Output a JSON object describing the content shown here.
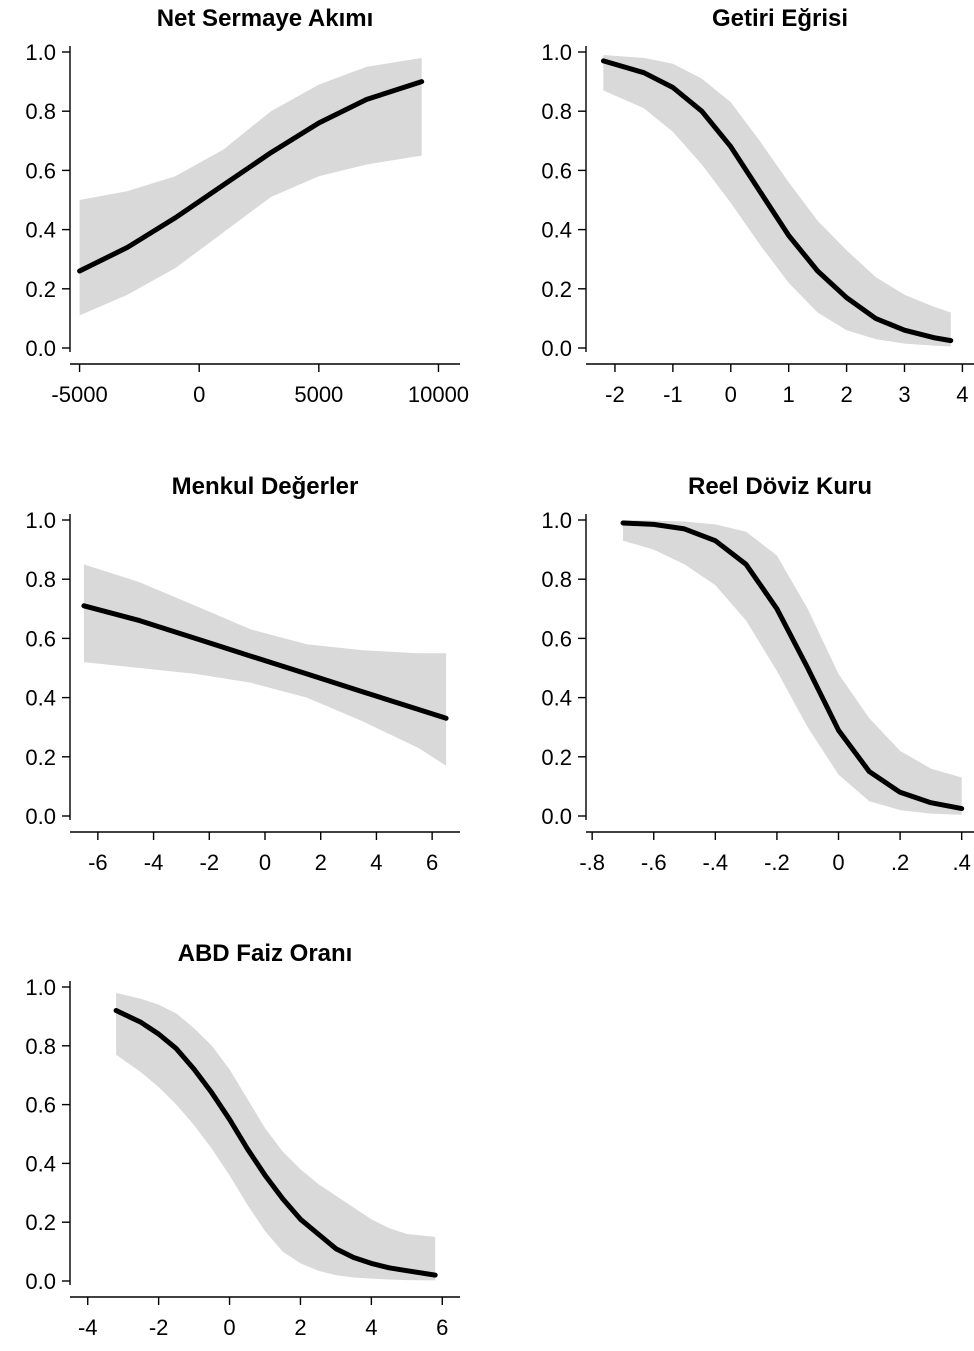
{
  "chart_data": [
    {
      "type": "line",
      "title": "Net Sermaye Akımı",
      "xlabel": "",
      "ylabel": "",
      "xlim": [
        -5400,
        10900
      ],
      "ylim": [
        0,
        1
      ],
      "xticks": [
        -5000,
        0,
        5000,
        10000
      ],
      "xtick_labels": [
        "-5000",
        "0",
        "5000",
        "10000"
      ],
      "yticks": [
        0,
        0.2,
        0.4,
        0.6,
        0.8,
        1
      ],
      "ytick_labels": [
        "0.0",
        "0.2",
        "0.4",
        "0.6",
        "0.8",
        "1.0"
      ],
      "series": [
        {
          "x": [
            -5000,
            -3000,
            -1000,
            1000,
            3000,
            5000,
            7000,
            9300
          ],
          "y": [
            0.26,
            0.34,
            0.44,
            0.55,
            0.66,
            0.76,
            0.84,
            0.9
          ],
          "lower": [
            0.11,
            0.18,
            0.27,
            0.39,
            0.51,
            0.58,
            0.62,
            0.65
          ],
          "upper": [
            0.5,
            0.53,
            0.58,
            0.67,
            0.8,
            0.89,
            0.95,
            0.98
          ]
        }
      ],
      "grid": false,
      "legend": "none"
    },
    {
      "type": "line",
      "title": "Getiri Eğrisi",
      "xlabel": "",
      "ylabel": "",
      "xlim": [
        -2.5,
        4.2
      ],
      "ylim": [
        0,
        1
      ],
      "xticks": [
        -2,
        -1,
        0,
        1,
        2,
        3,
        4
      ],
      "xtick_labels": [
        "-2",
        "-1",
        "0",
        "1",
        "2",
        "3",
        "4"
      ],
      "yticks": [
        0,
        0.2,
        0.4,
        0.6,
        0.8,
        1
      ],
      "ytick_labels": [
        "0.0",
        "0.2",
        "0.4",
        "0.6",
        "0.8",
        "1.0"
      ],
      "series": [
        {
          "x": [
            -2.2,
            -1.5,
            -1,
            -0.5,
            0,
            0.5,
            1,
            1.5,
            2,
            2.5,
            3,
            3.5,
            3.8
          ],
          "y": [
            0.97,
            0.93,
            0.88,
            0.8,
            0.68,
            0.53,
            0.38,
            0.26,
            0.17,
            0.1,
            0.06,
            0.035,
            0.025
          ],
          "lower": [
            0.87,
            0.81,
            0.73,
            0.62,
            0.49,
            0.35,
            0.22,
            0.12,
            0.06,
            0.03,
            0.015,
            0.008,
            0.005
          ],
          "upper": [
            0.99,
            0.98,
            0.96,
            0.91,
            0.83,
            0.7,
            0.56,
            0.43,
            0.33,
            0.24,
            0.18,
            0.14,
            0.12
          ]
        }
      ],
      "grid": false,
      "legend": "none"
    },
    {
      "type": "line",
      "title": "Menkul Değerler",
      "xlabel": "",
      "ylabel": "",
      "xlim": [
        -7,
        7
      ],
      "ylim": [
        0,
        1
      ],
      "xticks": [
        -6,
        -4,
        -2,
        0,
        2,
        4,
        6
      ],
      "xtick_labels": [
        "-6",
        "-4",
        "-2",
        "0",
        "2",
        "4",
        "6"
      ],
      "yticks": [
        0,
        0.2,
        0.4,
        0.6,
        0.8,
        1
      ],
      "ytick_labels": [
        "0.0",
        "0.2",
        "0.4",
        "0.6",
        "0.8",
        "1.0"
      ],
      "series": [
        {
          "x": [
            -6.5,
            -4.5,
            -2.5,
            -0.5,
            1.5,
            3.5,
            5.5,
            6.5
          ],
          "y": [
            0.71,
            0.66,
            0.6,
            0.54,
            0.48,
            0.42,
            0.36,
            0.33
          ],
          "lower": [
            0.52,
            0.5,
            0.48,
            0.45,
            0.4,
            0.32,
            0.23,
            0.17
          ],
          "upper": [
            0.85,
            0.79,
            0.71,
            0.63,
            0.58,
            0.56,
            0.55,
            0.55
          ]
        }
      ],
      "grid": false,
      "legend": "none"
    },
    {
      "type": "line",
      "title": "Reel Döviz Kuru",
      "xlabel": "",
      "ylabel": "",
      "xlim": [
        -0.82,
        0.44
      ],
      "ylim": [
        0,
        1
      ],
      "xticks": [
        -0.8,
        -0.6,
        -0.4,
        -0.2,
        0,
        0.2,
        0.4
      ],
      "xtick_labels": [
        "-.8",
        "-.6",
        "-.4",
        "-.2",
        "0",
        ".2",
        ".4"
      ],
      "yticks": [
        0,
        0.2,
        0.4,
        0.6,
        0.8,
        1
      ],
      "ytick_labels": [
        "0.0",
        "0.2",
        "0.4",
        "0.6",
        "0.8",
        "1.0"
      ],
      "series": [
        {
          "x": [
            -0.7,
            -0.6,
            -0.5,
            -0.4,
            -0.3,
            -0.2,
            -0.1,
            0,
            0.1,
            0.2,
            0.3,
            0.4
          ],
          "y": [
            0.99,
            0.985,
            0.97,
            0.93,
            0.85,
            0.7,
            0.5,
            0.29,
            0.15,
            0.08,
            0.045,
            0.025
          ],
          "lower": [
            0.93,
            0.9,
            0.85,
            0.78,
            0.66,
            0.49,
            0.3,
            0.14,
            0.05,
            0.02,
            0.008,
            0.004
          ],
          "upper": [
            1.0,
            0.998,
            0.995,
            0.985,
            0.96,
            0.88,
            0.7,
            0.48,
            0.33,
            0.22,
            0.16,
            0.13
          ]
        }
      ],
      "grid": false,
      "legend": "none"
    },
    {
      "type": "line",
      "title": "ABD Faiz Oranı",
      "xlabel": "",
      "ylabel": "",
      "xlim": [
        -4.5,
        6.5
      ],
      "ylim": [
        0,
        1
      ],
      "xticks": [
        -4,
        -2,
        0,
        2,
        4,
        6
      ],
      "xtick_labels": [
        "-4",
        "-2",
        "0",
        "2",
        "4",
        "6"
      ],
      "yticks": [
        0,
        0.2,
        0.4,
        0.6,
        0.8,
        1
      ],
      "ytick_labels": [
        "0.0",
        "0.2",
        "0.4",
        "0.6",
        "0.8",
        "1.0"
      ],
      "series": [
        {
          "x": [
            -3.2,
            -2.5,
            -2,
            -1.5,
            -1,
            -0.5,
            0,
            0.5,
            1,
            1.5,
            2,
            2.5,
            3,
            3.5,
            4,
            4.5,
            5,
            5.8
          ],
          "y": [
            0.92,
            0.88,
            0.84,
            0.79,
            0.72,
            0.64,
            0.55,
            0.45,
            0.36,
            0.28,
            0.21,
            0.16,
            0.11,
            0.08,
            0.06,
            0.045,
            0.035,
            0.02
          ],
          "lower": [
            0.77,
            0.71,
            0.66,
            0.6,
            0.53,
            0.45,
            0.36,
            0.26,
            0.17,
            0.1,
            0.06,
            0.035,
            0.02,
            0.012,
            0.008,
            0.005,
            0.003,
            0.002
          ],
          "upper": [
            0.98,
            0.96,
            0.94,
            0.91,
            0.86,
            0.8,
            0.72,
            0.62,
            0.52,
            0.44,
            0.38,
            0.33,
            0.29,
            0.25,
            0.21,
            0.18,
            0.16,
            0.15
          ]
        }
      ],
      "grid": false,
      "legend": "none"
    }
  ]
}
